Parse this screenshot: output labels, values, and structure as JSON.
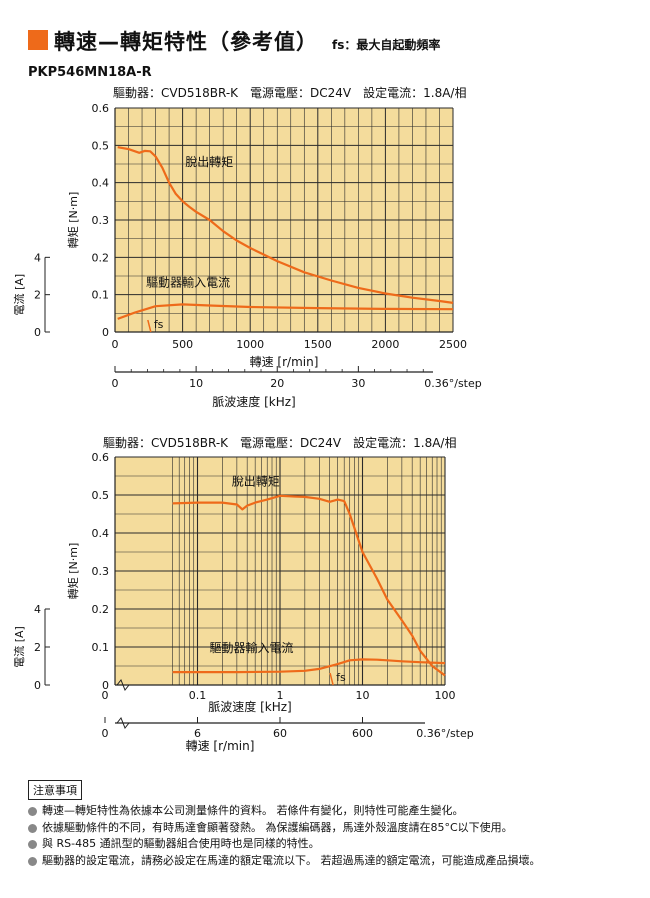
{
  "header": {
    "title": "轉速—轉矩特性（參考值）",
    "note": "fs：最大自起動頻率",
    "model": "PKP546MN18A-R"
  },
  "colors": {
    "accent": "#ee6a1a",
    "plot_bg": "#f4dc9c",
    "grid": "#2a2a2a"
  },
  "chart_data": [
    {
      "type": "line",
      "subtitle": "驅動器：CVD518BR-K　電源電壓：DC24V　設定電流：1.8A/相",
      "x_scale": "linear",
      "xlabel": "轉速 [r/min]",
      "xlim": [
        0,
        2500
      ],
      "xticks": [
        "0",
        "500",
        "1000",
        "1500",
        "2000",
        "2500"
      ],
      "ylabel": "轉矩 [N·m]",
      "ylim": [
        0,
        0.6
      ],
      "yticks": [
        "0",
        "0.1",
        "0.2",
        "0.3",
        "0.4",
        "0.5",
        "0.6"
      ],
      "y2label": "電流 [A]",
      "y2lim": [
        0,
        4
      ],
      "y2ticks": [
        "0",
        "2",
        "4"
      ],
      "secondary_axis": {
        "label": "脈波速度 [kHz]",
        "ticks": [
          "0",
          "10",
          "20",
          "30"
        ],
        "end_label": "0.36°/step"
      },
      "series": [
        {
          "name": "脫出轉矩",
          "axis": "torque",
          "x": [
            20,
            100,
            180,
            220,
            260,
            300,
            350,
            400,
            450,
            500,
            550,
            600,
            700,
            800,
            900,
            1000,
            1200,
            1400,
            1600,
            1800,
            2000,
            2200,
            2400,
            2500
          ],
          "y": [
            0.495,
            0.49,
            0.48,
            0.485,
            0.484,
            0.47,
            0.44,
            0.4,
            0.37,
            0.35,
            0.335,
            0.322,
            0.3,
            0.27,
            0.245,
            0.225,
            0.19,
            0.16,
            0.138,
            0.118,
            0.103,
            0.092,
            0.083,
            0.078
          ]
        },
        {
          "name": "驅動器輸入電流",
          "axis": "current",
          "x": [
            20,
            150,
            300,
            500,
            700,
            1000,
            1500,
            2000,
            2500
          ],
          "y": [
            0.7,
            1.05,
            1.38,
            1.48,
            1.42,
            1.34,
            1.28,
            1.24,
            1.22
          ]
        }
      ],
      "annotations": [
        {
          "text": "fs",
          "x": 265
        }
      ]
    },
    {
      "type": "line",
      "subtitle": "驅動器：CVD518BR-K　電源電壓：DC24V　設定電流：1.8A/相",
      "x_scale": "log",
      "xlabel": "脈波速度 [kHz]",
      "xlim": [
        0.01,
        100
      ],
      "xticks": [
        "0.1",
        "1",
        "10",
        "100"
      ],
      "x_origin_label": "0",
      "ylabel": "轉矩 [N·m]",
      "ylim": [
        0,
        0.6
      ],
      "yticks": [
        "0",
        "0.1",
        "0.2",
        "0.3",
        "0.4",
        "0.5",
        "0.6"
      ],
      "y2label": "電流 [A]",
      "y2lim": [
        0,
        4
      ],
      "y2ticks": [
        "0",
        "2",
        "4"
      ],
      "secondary_axis": {
        "label": "轉速 [r/min]",
        "ticks": [
          "0",
          "6",
          "60",
          "600"
        ],
        "end_label": "0.36°/step"
      },
      "series": [
        {
          "name": "脫出轉矩",
          "axis": "torque",
          "x": [
            0.05,
            0.1,
            0.2,
            0.3,
            0.35,
            0.4,
            0.5,
            0.7,
            1,
            1.5,
            2,
            3,
            4,
            5,
            6,
            7,
            10,
            15,
            20,
            30,
            40,
            50,
            70,
            100
          ],
          "y": [
            0.478,
            0.48,
            0.48,
            0.475,
            0.462,
            0.472,
            0.48,
            0.488,
            0.498,
            0.496,
            0.495,
            0.49,
            0.482,
            0.488,
            0.484,
            0.45,
            0.35,
            0.28,
            0.225,
            0.17,
            0.13,
            0.09,
            0.05,
            0.025
          ]
        },
        {
          "name": "驅動器輸入電流",
          "axis": "current",
          "x": [
            0.05,
            0.1,
            0.3,
            1,
            2,
            3,
            5,
            7,
            10,
            15,
            20,
            30,
            50,
            100
          ],
          "y": [
            0.68,
            0.68,
            0.68,
            0.7,
            0.75,
            0.85,
            1.1,
            1.3,
            1.35,
            1.33,
            1.3,
            1.25,
            1.2,
            1.15
          ]
        }
      ],
      "annotations": [
        {
          "text": "fs",
          "x": 4.4
        }
      ]
    }
  ],
  "notes": {
    "title": "注意事項",
    "items": [
      "轉速—轉矩特性為依據本公司測量條件的資料。 若條件有變化，則特性可能產生變化。",
      "依據驅動條件的不同，有時馬達會顯著發熱。 為保護編碼器，馬達外殼溫度請在85°C以下使用。",
      "與 RS-485 通訊型的驅動器組合使用時也是同樣的特性。",
      "驅動器的設定電流，請務必設定在馬達的額定電流以下。 若超過馬達的額定電流，可能造成產品損壞。"
    ]
  }
}
